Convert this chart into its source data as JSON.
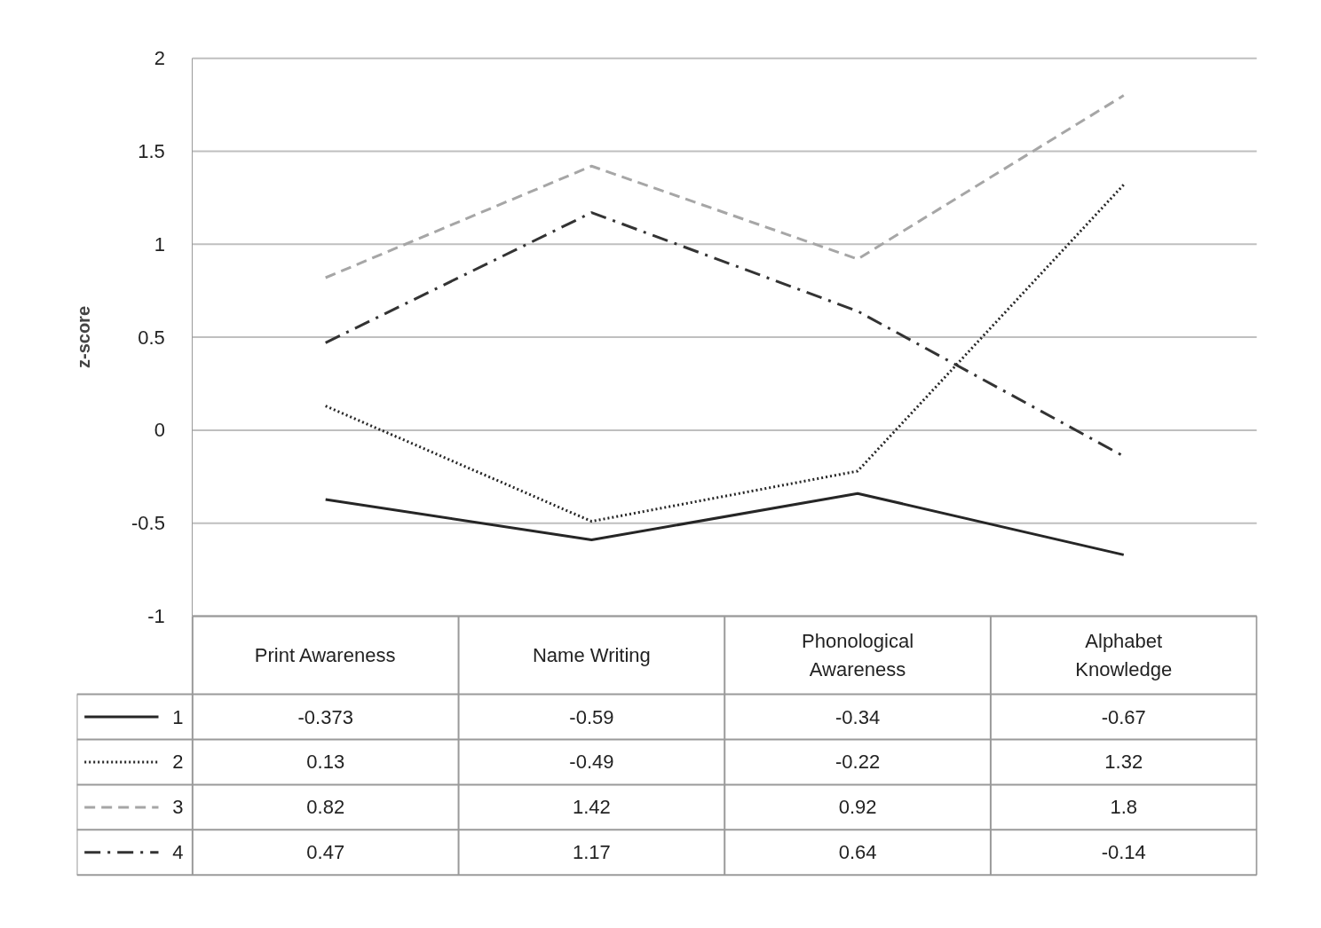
{
  "chart_data": {
    "type": "line",
    "ylabel": "z-score",
    "categories": [
      "Print Awareness",
      "Name Writing",
      "Phonological Awareness",
      "Alphabet Knowledge"
    ],
    "series": [
      {
        "name": "1",
        "color": "#262626",
        "line_style": "solid",
        "values": [
          -0.373,
          -0.59,
          -0.34,
          -0.67
        ]
      },
      {
        "name": "2",
        "color": "#262626",
        "line_style": "dotted",
        "values": [
          0.13,
          -0.49,
          -0.22,
          1.32
        ]
      },
      {
        "name": "3",
        "color": "#a6a6a6",
        "line_style": "dashed",
        "values": [
          0.82,
          1.42,
          0.92,
          1.8
        ]
      },
      {
        "name": "4",
        "color": "#333333",
        "line_style": "dashdot",
        "values": [
          0.47,
          1.17,
          0.64,
          -0.14
        ]
      }
    ],
    "ylim": [
      -1,
      2
    ],
    "yticks": [
      -1,
      -0.5,
      0,
      0.5,
      1,
      1.5,
      2
    ],
    "grid": "y",
    "legend": "bottom",
    "data_labels": true
  }
}
